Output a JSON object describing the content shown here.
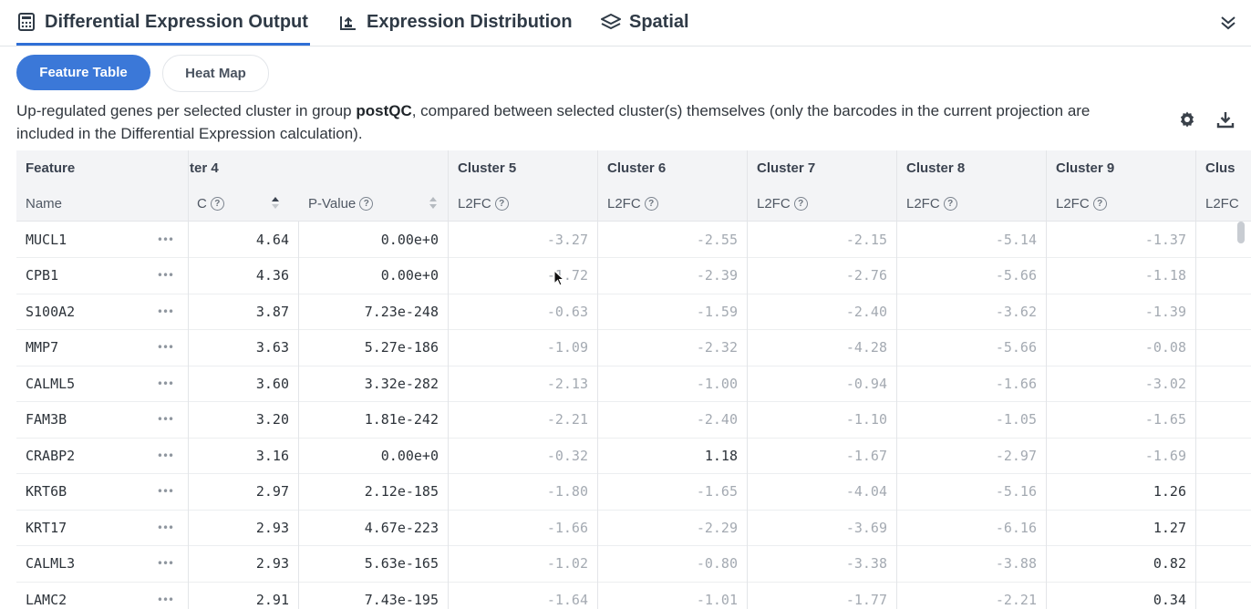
{
  "tabs": [
    {
      "label": "Differential Expression Output",
      "icon": "calculator-icon",
      "active": true
    },
    {
      "label": "Expression Distribution",
      "icon": "chart-upload-icon",
      "active": false
    },
    {
      "label": "Spatial",
      "icon": "layers-icon",
      "active": false
    }
  ],
  "view_toggle": {
    "feature_table": "Feature Table",
    "heat_map": "Heat Map"
  },
  "description": {
    "before": "Up-regulated genes per selected cluster in group ",
    "group": "postQC",
    "after": ", compared between selected cluster(s) themselves (only the barcodes in the current projection are included in the Differential Expression calculation)."
  },
  "toolbar": {
    "settings_icon": "gear-icon",
    "download_icon": "download-icon"
  },
  "header": {
    "feature": "Feature",
    "name": "Name",
    "cluster4": "ter 4",
    "cluster4_sub": "C",
    "pvalue": "P-Value",
    "clusters": [
      "Cluster 5",
      "Cluster 6",
      "Cluster 7",
      "Cluster 8",
      "Cluster 9",
      "Clus"
    ],
    "l2fc": "L2FC",
    "l2fc_cut": "L2FC",
    "help": "?"
  },
  "rows": [
    {
      "name": "MUCL1",
      "l2fc": "4.64",
      "pvalue": "0.00e+0",
      "c5": "-3.27",
      "c6": "-2.55",
      "c7": "-2.15",
      "c8": "-5.14",
      "c9": "-1.37"
    },
    {
      "name": "CPB1",
      "l2fc": "4.36",
      "pvalue": "0.00e+0",
      "c5": "-1.72",
      "c6": "-2.39",
      "c7": "-2.76",
      "c8": "-5.66",
      "c9": "-1.18"
    },
    {
      "name": "S100A2",
      "l2fc": "3.87",
      "pvalue": "7.23e-248",
      "c5": "-0.63",
      "c6": "-1.59",
      "c7": "-2.40",
      "c8": "-3.62",
      "c9": "-1.39"
    },
    {
      "name": "MMP7",
      "l2fc": "3.63",
      "pvalue": "5.27e-186",
      "c5": "-1.09",
      "c6": "-2.32",
      "c7": "-4.28",
      "c8": "-5.66",
      "c9": "-0.08"
    },
    {
      "name": "CALML5",
      "l2fc": "3.60",
      "pvalue": "3.32e-282",
      "c5": "-2.13",
      "c6": "-1.00",
      "c7": "-0.94",
      "c8": "-1.66",
      "c9": "-3.02"
    },
    {
      "name": "FAM3B",
      "l2fc": "3.20",
      "pvalue": "1.81e-242",
      "c5": "-2.21",
      "c6": "-2.40",
      "c7": "-1.10",
      "c8": "-1.05",
      "c9": "-1.65"
    },
    {
      "name": "CRABP2",
      "l2fc": "3.16",
      "pvalue": "0.00e+0",
      "c5": "-0.32",
      "c6": "1.18",
      "c7": "-1.67",
      "c8": "-2.97",
      "c9": "-1.69"
    },
    {
      "name": "KRT6B",
      "l2fc": "2.97",
      "pvalue": "2.12e-185",
      "c5": "-1.80",
      "c6": "-1.65",
      "c7": "-4.04",
      "c8": "-5.16",
      "c9": "1.26"
    },
    {
      "name": "KRT17",
      "l2fc": "2.93",
      "pvalue": "4.67e-223",
      "c5": "-1.66",
      "c6": "-2.29",
      "c7": "-3.69",
      "c8": "-6.16",
      "c9": "1.27"
    },
    {
      "name": "CALML3",
      "l2fc": "2.93",
      "pvalue": "5.63e-165",
      "c5": "-1.02",
      "c6": "-0.80",
      "c7": "-3.38",
      "c8": "-3.88",
      "c9": "0.82"
    },
    {
      "name": "LAMC2",
      "l2fc": "2.91",
      "pvalue": "7.43e-195",
      "c5": "-1.64",
      "c6": "-1.01",
      "c7": "-1.77",
      "c8": "-2.21",
      "c9": "0.34"
    }
  ],
  "row_menu_glyph": "•••",
  "colors": {
    "accent": "#3b78d8",
    "header_bg": "#f3f4f6",
    "faint_value": "#a4aab2"
  }
}
